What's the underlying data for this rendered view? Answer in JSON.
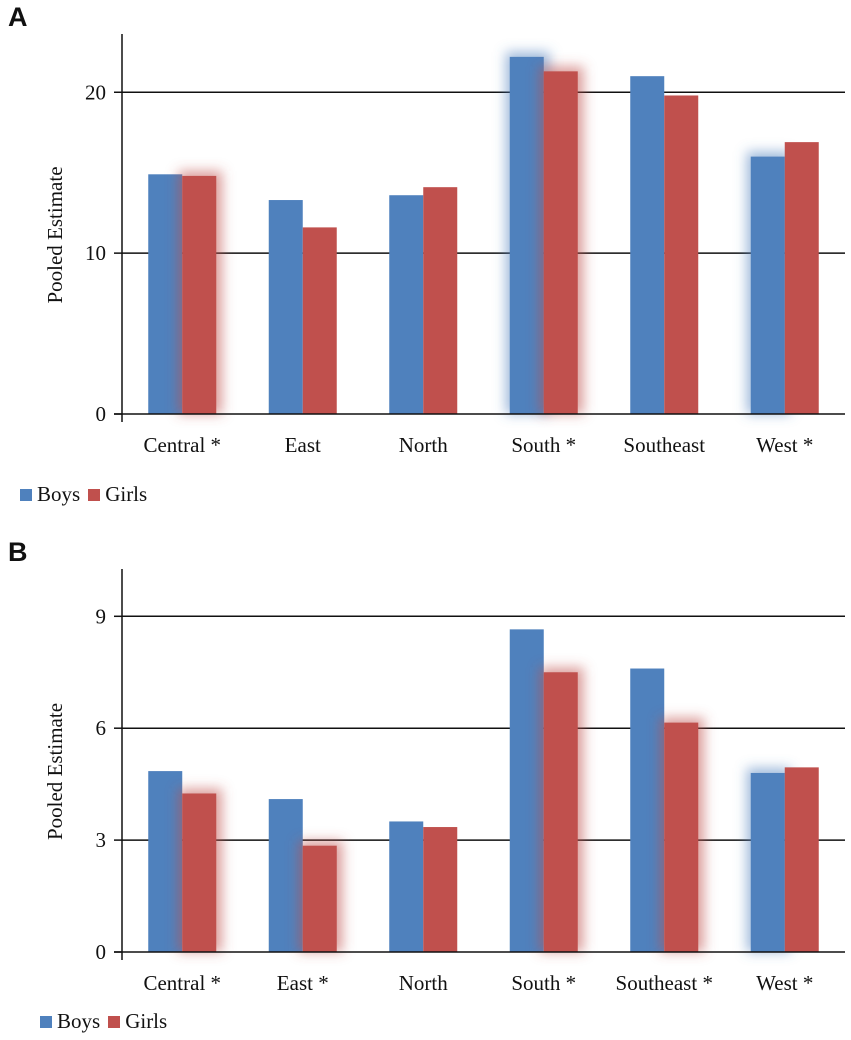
{
  "chart_data": [
    {
      "type": "bar",
      "panel_label": "A",
      "ylabel": "Pooled Estimate",
      "xlabel": "",
      "ylim": [
        0,
        23
      ],
      "yticks": [
        0,
        10,
        20
      ],
      "gridlines": [
        10,
        20
      ],
      "categories": [
        "Central *",
        "East",
        "North",
        "South *",
        "Southeast",
        "West *"
      ],
      "series": [
        {
          "name": "Boys",
          "color": "#4f81bd",
          "values": [
            14.9,
            13.3,
            13.6,
            22.2,
            21.0,
            16.0
          ]
        },
        {
          "name": "Girls",
          "color": "#c0504d",
          "values": [
            14.8,
            11.6,
            14.1,
            21.3,
            19.8,
            16.9
          ]
        }
      ],
      "highlight": [
        {
          "category": 0,
          "series": "Girls"
        },
        {
          "category": 3,
          "series": "Boys"
        },
        {
          "category": 3,
          "series": "Girls"
        },
        {
          "category": 5,
          "series": "Boys"
        }
      ],
      "legend": "bottom-left"
    },
    {
      "type": "bar",
      "panel_label": "B",
      "ylabel": "Pooled Estimate",
      "xlabel": "",
      "ylim": [
        0,
        10
      ],
      "yticks": [
        0,
        3,
        6,
        9
      ],
      "gridlines": [
        3,
        6,
        9
      ],
      "categories": [
        "Central *",
        "East *",
        "North",
        "South *",
        "Southeast *",
        "West *"
      ],
      "series": [
        {
          "name": "Boys",
          "color": "#4f81bd",
          "values": [
            4.85,
            4.1,
            3.5,
            8.65,
            7.6,
            4.8
          ]
        },
        {
          "name": "Girls",
          "color": "#c0504d",
          "values": [
            4.25,
            2.85,
            3.35,
            7.5,
            6.15,
            4.95
          ]
        }
      ],
      "highlight": [
        {
          "category": 0,
          "series": "Girls"
        },
        {
          "category": 1,
          "series": "Girls"
        },
        {
          "category": 3,
          "series": "Girls"
        },
        {
          "category": 4,
          "series": "Girls"
        },
        {
          "category": 5,
          "series": "Boys"
        }
      ],
      "legend": "bottom-left"
    }
  ]
}
